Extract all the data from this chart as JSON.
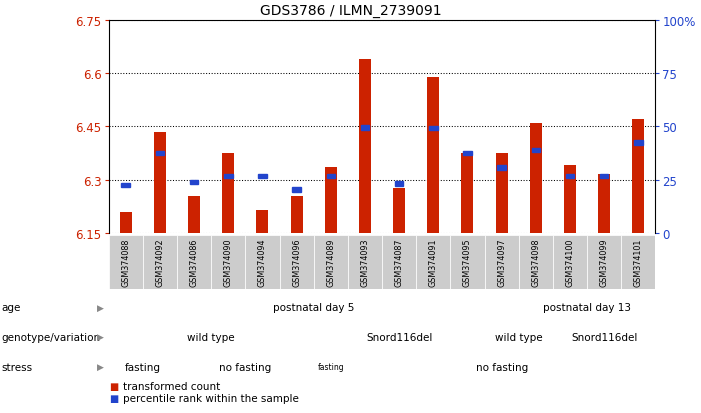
{
  "title": "GDS3786 / ILMN_2739091",
  "samples": [
    "GSM374088",
    "GSM374092",
    "GSM374086",
    "GSM374090",
    "GSM374094",
    "GSM374096",
    "GSM374089",
    "GSM374093",
    "GSM374087",
    "GSM374091",
    "GSM374095",
    "GSM374097",
    "GSM374098",
    "GSM374100",
    "GSM374099",
    "GSM374101"
  ],
  "red_values": [
    6.21,
    6.435,
    6.255,
    6.375,
    6.215,
    6.255,
    6.335,
    6.64,
    6.275,
    6.59,
    6.375,
    6.375,
    6.46,
    6.34,
    6.315,
    6.47
  ],
  "blue_values": [
    6.285,
    6.375,
    6.293,
    6.31,
    6.31,
    6.273,
    6.31,
    6.447,
    6.29,
    6.445,
    6.375,
    6.335,
    6.383,
    6.31,
    6.31,
    6.405
  ],
  "ymin": 6.15,
  "ymax": 6.75,
  "yticks": [
    6.15,
    6.3,
    6.45,
    6.6,
    6.75
  ],
  "ytick_labels": [
    "6.15",
    "6.3",
    "6.45",
    "6.6",
    "6.75"
  ],
  "right_yticks": [
    0,
    25,
    50,
    75,
    100
  ],
  "right_ytick_labels": [
    "0",
    "25",
    "50",
    "75",
    "100%"
  ],
  "bar_color": "#cc2200",
  "blue_color": "#2244cc",
  "age_spans": [
    [
      0,
      12,
      "postnatal day 5",
      "#aaeea0"
    ],
    [
      12,
      16,
      "postnatal day 13",
      "#44cc44"
    ]
  ],
  "geno_spans": [
    [
      0,
      6,
      "wild type",
      "#ccbbff"
    ],
    [
      6,
      11,
      "Snord116del",
      "#9988cc"
    ],
    [
      11,
      13,
      "wild type",
      "#ccbbff"
    ],
    [
      13,
      16,
      "Snord116del",
      "#9988cc"
    ]
  ],
  "stress_spans": [
    [
      0,
      2,
      "fasting",
      "#ffcccc"
    ],
    [
      2,
      6,
      "no fasting",
      "#ee9988"
    ],
    [
      6,
      7,
      "fasting",
      "#ffcccc"
    ],
    [
      7,
      16,
      "no fasting",
      "#ee9988"
    ]
  ],
  "row_labels": [
    "age",
    "genotype/variation",
    "stress"
  ],
  "legend_red": "transformed count",
  "legend_blue": "percentile rank within the sample",
  "bg_color": "#ffffff",
  "tick_color_left": "#cc2200",
  "tick_color_right": "#2244cc",
  "header_bg": "#cccccc"
}
